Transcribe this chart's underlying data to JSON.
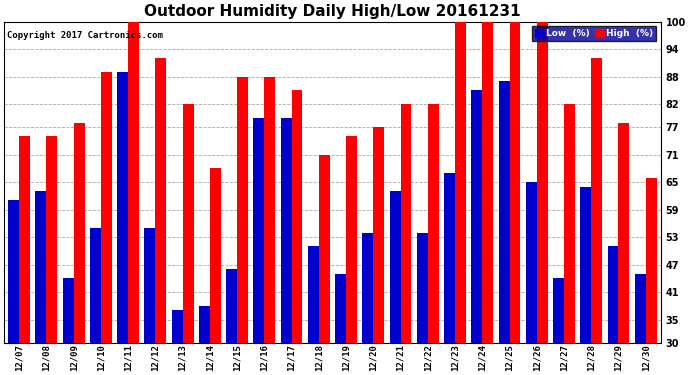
{
  "title": "Outdoor Humidity Daily High/Low 20161231",
  "copyright": "Copyright 2017 Cartronics.com",
  "dates": [
    "12/07",
    "12/08",
    "12/09",
    "12/10",
    "12/11",
    "12/12",
    "12/13",
    "12/14",
    "12/15",
    "12/16",
    "12/17",
    "12/18",
    "12/19",
    "12/20",
    "12/21",
    "12/22",
    "12/23",
    "12/24",
    "12/25",
    "12/26",
    "12/27",
    "12/28",
    "12/29",
    "12/30"
  ],
  "high": [
    75,
    75,
    78,
    89,
    100,
    92,
    82,
    68,
    88,
    88,
    85,
    71,
    75,
    77,
    82,
    82,
    100,
    100,
    100,
    100,
    82,
    92,
    78,
    66
  ],
  "low": [
    61,
    63,
    44,
    55,
    89,
    55,
    37,
    38,
    46,
    79,
    79,
    51,
    45,
    54,
    63,
    54,
    67,
    85,
    87,
    65,
    44,
    64,
    51,
    45
  ],
  "high_color": "#ff0000",
  "low_color": "#0000cc",
  "bg_color": "#ffffff",
  "plot_bg_color": "#ffffff",
  "grid_color": "#aaaaaa",
  "ylim_min": 30,
  "ylim_max": 100,
  "yticks": [
    30,
    35,
    41,
    47,
    53,
    59,
    65,
    71,
    77,
    82,
    88,
    94,
    100
  ],
  "title_fontsize": 11,
  "copyright_fontsize": 6.5,
  "legend_low_label": "Low  (%)",
  "legend_high_label": "High  (%)"
}
